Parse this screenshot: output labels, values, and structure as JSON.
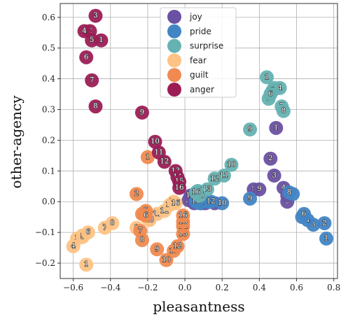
{
  "chart_data": {
    "type": "scatter",
    "xlabel": "pleasantness",
    "ylabel": "other-agency",
    "xlim": [
      -0.67,
      0.82
    ],
    "ylim": [
      -0.25,
      0.645
    ],
    "xticks": [
      -0.6,
      -0.4,
      -0.2,
      0.0,
      0.2,
      0.4,
      0.6,
      0.8
    ],
    "xtick_labels": [
      "−0.6",
      "−0.4",
      "−0.2",
      "0.0",
      "0.2",
      "0.4",
      "0.6",
      "0.8"
    ],
    "yticks": [
      -0.2,
      -0.1,
      0.0,
      0.1,
      0.2,
      0.3,
      0.4,
      0.5,
      0.6
    ],
    "ytick_labels": [
      "−0.2",
      "−0.1",
      "0.0",
      "0.1",
      "0.2",
      "0.3",
      "0.4",
      "0.5",
      "0.6"
    ],
    "grid": true,
    "legend_position": "top-center",
    "series": [
      {
        "name": "joy",
        "color": "#6a51a3",
        "points": [
          {
            "x": 0.49,
            "y": 0.24,
            "label": "1"
          },
          {
            "x": 0.46,
            "y": 0.14,
            "label": "2"
          },
          {
            "x": 0.48,
            "y": 0.085,
            "label": "3"
          },
          {
            "x": 0.53,
            "y": 0.045,
            "label": "4"
          },
          {
            "x": 0.55,
            "y": 0.0,
            "label": "5"
          },
          {
            "x": 0.09,
            "y": -0.005,
            "label": "6"
          },
          {
            "x": 0.55,
            "y": 0.02,
            "label": "7"
          },
          {
            "x": 0.37,
            "y": 0.04,
            "label": "8"
          },
          {
            "x": 0.4,
            "y": 0.04,
            "label": "9"
          },
          {
            "x": 0.16,
            "y": -0.005,
            "label": "10"
          },
          {
            "x": 0.07,
            "y": 0.0,
            "label": "11"
          },
          {
            "x": 0.11,
            "y": -0.005,
            "label": "12"
          },
          {
            "x": 0.05,
            "y": 0.01,
            "label": "13"
          },
          {
            "x": 0.02,
            "y": 0.005,
            "label": "14"
          },
          {
            "x": 0.03,
            "y": 0.02,
            "label": "15"
          },
          {
            "x": 0.05,
            "y": -0.005,
            "label": "16"
          }
        ]
      },
      {
        "name": "pride",
        "color": "#4285c4",
        "points": [
          {
            "x": 0.76,
            "y": -0.12,
            "label": "1"
          },
          {
            "x": 0.75,
            "y": -0.07,
            "label": "2"
          },
          {
            "x": 0.69,
            "y": -0.075,
            "label": "3"
          },
          {
            "x": 0.66,
            "y": -0.06,
            "label": "4"
          },
          {
            "x": 0.63,
            "y": -0.05,
            "label": "5"
          },
          {
            "x": 0.64,
            "y": -0.04,
            "label": "6"
          },
          {
            "x": 0.58,
            "y": 0.025,
            "label": "7"
          },
          {
            "x": 0.56,
            "y": 0.03,
            "label": "8"
          },
          {
            "x": 0.35,
            "y": 0.01,
            "label": "9"
          },
          {
            "x": 0.2,
            "y": -0.005,
            "label": "10"
          },
          {
            "x": 0.12,
            "y": 0.0,
            "label": "11"
          },
          {
            "x": 0.14,
            "y": 0.0,
            "label": "12"
          },
          {
            "x": 0.08,
            "y": -0.005,
            "label": "13"
          },
          {
            "x": 0.06,
            "y": 0.0,
            "label": "14"
          },
          {
            "x": 0.07,
            "y": 0.005,
            "label": "15"
          },
          {
            "x": 0.06,
            "y": 0.0,
            "label": "16"
          }
        ]
      },
      {
        "name": "surprise",
        "color": "#66b2b2",
        "points": [
          {
            "x": 0.44,
            "y": 0.405,
            "label": "1"
          },
          {
            "x": 0.48,
            "y": 0.37,
            "label": "2"
          },
          {
            "x": 0.45,
            "y": 0.335,
            "label": "3"
          },
          {
            "x": 0.51,
            "y": 0.37,
            "label": "4"
          },
          {
            "x": 0.47,
            "y": 0.36,
            "label": "5"
          },
          {
            "x": 0.46,
            "y": 0.35,
            "label": "6"
          },
          {
            "x": 0.52,
            "y": 0.31,
            "label": "7"
          },
          {
            "x": 0.53,
            "y": 0.295,
            "label": "8"
          },
          {
            "x": 0.35,
            "y": 0.235,
            "label": "9"
          },
          {
            "x": 0.25,
            "y": 0.12,
            "label": "10"
          },
          {
            "x": 0.21,
            "y": 0.085,
            "label": "11"
          },
          {
            "x": 0.16,
            "y": 0.075,
            "label": "12"
          },
          {
            "x": 0.12,
            "y": 0.04,
            "label": "13"
          },
          {
            "x": 0.07,
            "y": 0.035,
            "label": "14"
          },
          {
            "x": 0.08,
            "y": 0.02,
            "label": "15"
          },
          {
            "x": 0.06,
            "y": 0.03,
            "label": "16"
          }
        ]
      },
      {
        "name": "fear",
        "color": "#fdc385",
        "points": [
          {
            "x": -0.53,
            "y": -0.205,
            "label": "1"
          },
          {
            "x": -0.55,
            "y": -0.11,
            "label": "2"
          },
          {
            "x": -0.58,
            "y": -0.12,
            "label": "3"
          },
          {
            "x": -0.6,
            "y": -0.145,
            "label": "4"
          },
          {
            "x": -0.55,
            "y": -0.115,
            "label": "5"
          },
          {
            "x": -0.52,
            "y": -0.1,
            "label": "6"
          },
          {
            "x": -0.43,
            "y": -0.085,
            "label": "7"
          },
          {
            "x": -0.39,
            "y": -0.07,
            "label": "8"
          },
          {
            "x": -0.26,
            "y": -0.085,
            "label": "9"
          },
          {
            "x": -0.2,
            "y": -0.055,
            "label": "10"
          },
          {
            "x": -0.15,
            "y": -0.04,
            "label": "11"
          },
          {
            "x": -0.11,
            "y": -0.03,
            "label": "12"
          },
          {
            "x": -0.19,
            "y": -0.06,
            "label": "13"
          },
          {
            "x": -0.08,
            "y": -0.01,
            "label": "14"
          },
          {
            "x": -0.06,
            "y": 0.0,
            "label": "15"
          },
          {
            "x": -0.05,
            "y": -0.005,
            "label": "16"
          }
        ]
      },
      {
        "name": "guilt",
        "color": "#f08a50",
        "points": [
          {
            "x": -0.2,
            "y": 0.145,
            "label": "1"
          },
          {
            "x": -0.26,
            "y": 0.025,
            "label": "2"
          },
          {
            "x": -0.22,
            "y": -0.04,
            "label": "3"
          },
          {
            "x": -0.23,
            "y": -0.04,
            "label": "4"
          },
          {
            "x": -0.21,
            "y": -0.03,
            "label": "5"
          },
          {
            "x": -0.21,
            "y": -0.045,
            "label": "6"
          },
          {
            "x": -0.24,
            "y": -0.095,
            "label": "7"
          },
          {
            "x": -0.23,
            "y": -0.125,
            "label": "8"
          },
          {
            "x": -0.15,
            "y": -0.155,
            "label": "9"
          },
          {
            "x": -0.1,
            "y": -0.19,
            "label": "10"
          },
          {
            "x": -0.06,
            "y": -0.16,
            "label": "11"
          },
          {
            "x": -0.04,
            "y": -0.145,
            "label": "12"
          },
          {
            "x": -0.01,
            "y": -0.105,
            "label": "13"
          },
          {
            "x": -0.01,
            "y": -0.08,
            "label": "14"
          },
          {
            "x": -0.01,
            "y": -0.065,
            "label": "15"
          },
          {
            "x": -0.01,
            "y": -0.045,
            "label": "16"
          }
        ]
      },
      {
        "name": "anger",
        "color": "#9c1d56",
        "points": [
          {
            "x": -0.45,
            "y": 0.525,
            "label": "1"
          },
          {
            "x": -0.51,
            "y": 0.555,
            "label": "2"
          },
          {
            "x": -0.48,
            "y": 0.605,
            "label": "3"
          },
          {
            "x": -0.54,
            "y": 0.555,
            "label": "4"
          },
          {
            "x": -0.5,
            "y": 0.525,
            "label": "5"
          },
          {
            "x": -0.53,
            "y": 0.47,
            "label": "6"
          },
          {
            "x": -0.5,
            "y": 0.395,
            "label": "7"
          },
          {
            "x": -0.48,
            "y": 0.31,
            "label": "8"
          },
          {
            "x": -0.23,
            "y": 0.29,
            "label": "9"
          },
          {
            "x": -0.16,
            "y": 0.195,
            "label": "10"
          },
          {
            "x": -0.14,
            "y": 0.16,
            "label": "11"
          },
          {
            "x": -0.11,
            "y": 0.13,
            "label": "12"
          },
          {
            "x": -0.05,
            "y": 0.1,
            "label": "13"
          },
          {
            "x": -0.04,
            "y": 0.08,
            "label": "14"
          },
          {
            "x": -0.03,
            "y": 0.065,
            "label": "15"
          },
          {
            "x": -0.03,
            "y": 0.045,
            "label": "16"
          }
        ]
      }
    ]
  }
}
